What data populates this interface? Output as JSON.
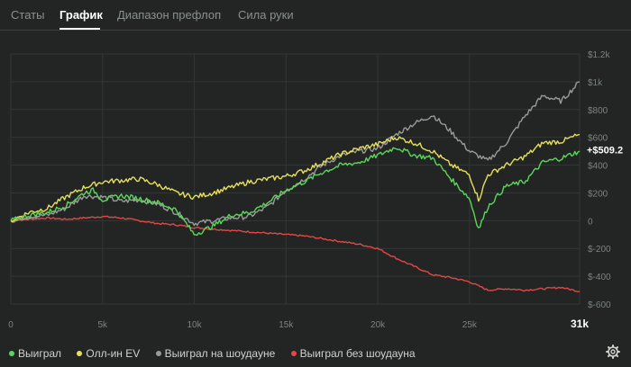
{
  "tabs": [
    {
      "label": "Статы"
    },
    {
      "label": "График"
    },
    {
      "label": "Диапазон префлоп"
    },
    {
      "label": "Сила руки"
    }
  ],
  "active_tab": "График",
  "colors": {
    "background": "#222523",
    "grid": "#323634",
    "axis_text": "#7d837f",
    "series_green": "#5ad85a",
    "series_yellow": "#e6e05a",
    "series_gray": "#9a9a9a",
    "series_red": "#e04848"
  },
  "chart_data": {
    "type": "line",
    "title": "",
    "xlabel": "",
    "ylabel": "",
    "xlim": [
      0,
      31000
    ],
    "ylim": [
      -600,
      1200
    ],
    "x_ticks": [
      "0",
      "5k",
      "10k",
      "15k",
      "20k",
      "25k",
      "31k"
    ],
    "x_tick_values": [
      0,
      5000,
      10000,
      15000,
      20000,
      25000,
      31000
    ],
    "y_ticks": [
      "$1.2k",
      "$1k",
      "$800",
      "$600",
      "$400",
      "$200",
      "0",
      "$-200",
      "$-400",
      "$-600"
    ],
    "y_tick_values": [
      1200,
      1000,
      800,
      600,
      400,
      200,
      0,
      -200,
      -400,
      -600
    ],
    "current_value_label": "+$509.2",
    "current_value": 509.2,
    "series": [
      {
        "name": "Выиграл",
        "color": "#5ad85a",
        "x": [
          0,
          1000,
          2000,
          3000,
          4000,
          4500,
          5000,
          6000,
          7000,
          8000,
          9000,
          10000,
          11000,
          12000,
          13000,
          14000,
          15000,
          16000,
          17000,
          18000,
          19000,
          20000,
          21000,
          22000,
          23000,
          24000,
          25000,
          25500,
          26000,
          27000,
          28000,
          29000,
          30000,
          31000
        ],
        "values": [
          0,
          40,
          60,
          110,
          200,
          220,
          150,
          180,
          160,
          130,
          80,
          -100,
          -40,
          40,
          60,
          130,
          220,
          280,
          350,
          400,
          420,
          470,
          530,
          470,
          450,
          300,
          160,
          -60,
          100,
          250,
          280,
          420,
          450,
          500
        ]
      },
      {
        "name": "Олл-ин EV",
        "color": "#e6e05a",
        "x": [
          0,
          1000,
          2000,
          3000,
          4000,
          5000,
          6000,
          7000,
          8000,
          9000,
          10000,
          11000,
          12000,
          13000,
          14000,
          15000,
          16000,
          17000,
          18000,
          19000,
          20000,
          21000,
          22000,
          23000,
          24000,
          25000,
          25500,
          26000,
          27000,
          28000,
          29000,
          30000,
          31000
        ],
        "values": [
          0,
          60,
          90,
          170,
          240,
          280,
          290,
          300,
          260,
          200,
          170,
          200,
          240,
          280,
          300,
          320,
          360,
          420,
          480,
          520,
          550,
          600,
          560,
          500,
          400,
          330,
          150,
          330,
          400,
          460,
          560,
          570,
          620
        ]
      },
      {
        "name": "Выиграл на шоудауне",
        "color": "#9a9a9a",
        "x": [
          0,
          1000,
          2000,
          3000,
          4000,
          5000,
          6000,
          7000,
          8000,
          9000,
          10000,
          11000,
          12000,
          13000,
          14000,
          15000,
          16000,
          17000,
          18000,
          19000,
          20000,
          21000,
          22000,
          23000,
          24000,
          25000,
          26000,
          27000,
          28000,
          29000,
          30000,
          31000
        ],
        "values": [
          0,
          30,
          40,
          90,
          180,
          170,
          140,
          150,
          120,
          60,
          -20,
          0,
          20,
          30,
          100,
          220,
          300,
          400,
          470,
          500,
          520,
          620,
          700,
          760,
          640,
          500,
          430,
          560,
          750,
          900,
          860,
          1000
        ]
      },
      {
        "name": "Выиграл без шоудауна",
        "color": "#e04848",
        "x": [
          0,
          1000,
          2000,
          3000,
          4000,
          5000,
          6000,
          7000,
          8000,
          9000,
          10000,
          11000,
          12000,
          13000,
          14000,
          15000,
          16000,
          17000,
          18000,
          19000,
          20000,
          21000,
          22000,
          23000,
          24000,
          25000,
          26000,
          27000,
          28000,
          29000,
          30000,
          31000
        ],
        "values": [
          0,
          10,
          20,
          10,
          20,
          30,
          20,
          0,
          -20,
          -30,
          -50,
          -60,
          -70,
          -80,
          -90,
          -100,
          -110,
          -130,
          -150,
          -170,
          -200,
          -270,
          -330,
          -390,
          -410,
          -440,
          -500,
          -490,
          -500,
          -490,
          -480,
          -510
        ]
      }
    ],
    "legend_position": "bottom-left"
  },
  "legend": [
    {
      "label": "Выиграл",
      "color": "#5ad85a"
    },
    {
      "label": "Олл-ин EV",
      "color": "#e6e05a"
    },
    {
      "label": "Выиграл на шоудауне",
      "color": "#9a9a9a"
    },
    {
      "label": "Выиграл без шоудауна",
      "color": "#e04848"
    }
  ],
  "settings_icon": "gear-icon"
}
